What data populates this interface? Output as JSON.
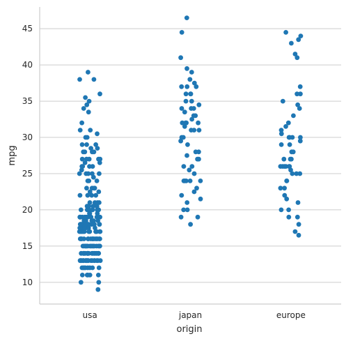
{
  "chart_data": {
    "type": "scatter",
    "subtype": "strip",
    "title": "",
    "xlabel": "origin",
    "ylabel": "mpg",
    "categories": [
      "usa",
      "japan",
      "europe"
    ],
    "ylim": [
      7,
      48
    ],
    "yticks": [
      10,
      15,
      20,
      25,
      30,
      35,
      40,
      45
    ],
    "grid": "horizontal",
    "legend": "none",
    "color": "#1f77b4",
    "series": [
      {
        "category": "usa",
        "values": [
          9,
          10,
          10,
          11,
          11,
          11,
          11,
          11,
          12,
          12,
          12,
          12,
          12,
          12,
          12,
          12,
          13,
          13,
          13,
          13,
          13,
          13,
          13,
          13,
          13,
          13,
          13,
          13,
          13,
          13,
          13,
          13,
          13,
          13,
          13,
          13,
          14,
          14,
          14,
          14,
          14,
          14,
          14,
          14,
          14,
          14,
          14,
          14,
          14,
          14,
          14,
          14,
          14,
          14,
          14,
          15,
          15,
          15,
          15,
          15,
          15,
          15,
          15,
          15,
          15,
          15,
          15,
          15,
          15,
          15,
          15,
          15,
          16,
          16,
          16,
          16,
          16,
          16,
          16,
          16,
          16,
          16,
          16,
          16,
          16,
          16,
          16,
          17,
          17,
          17,
          17,
          17,
          17,
          17,
          17,
          17,
          17,
          17,
          17,
          17,
          17,
          17.5,
          17.5,
          17.5,
          17.5,
          17.5,
          17.5,
          18,
          18,
          18,
          18,
          18,
          18,
          18,
          18,
          18,
          18,
          18,
          18,
          18,
          18,
          18.5,
          18.5,
          18.5,
          18.5,
          18.5,
          19,
          19,
          19,
          19,
          19,
          19,
          19,
          19,
          19,
          19,
          19.5,
          19.5,
          19.5,
          20,
          20,
          20,
          20,
          20,
          20,
          20,
          20,
          20,
          20.5,
          20.5,
          20.5,
          20.5,
          21,
          21,
          21,
          21,
          22,
          22,
          22,
          22,
          22.5,
          22.5,
          23,
          23,
          23,
          23,
          24,
          24,
          24,
          24.5,
          25,
          25,
          25,
          25,
          25,
          25.5,
          26,
          26,
          26,
          26,
          26.5,
          26.5,
          27,
          27,
          27,
          27,
          27,
          28,
          28,
          28,
          28,
          28.5,
          28.5,
          29,
          29,
          29,
          30,
          30,
          30.5,
          31,
          31,
          32,
          33.5,
          34,
          34.5,
          35,
          35.5,
          36,
          38,
          38,
          39
        ]
      },
      {
        "category": "japan",
        "values": [
          18,
          19,
          19,
          20,
          20,
          21,
          21.5,
          22,
          22.5,
          23,
          24,
          24,
          24,
          24,
          24,
          25,
          25.5,
          26,
          26,
          27,
          27,
          27.5,
          28,
          28,
          29,
          29.5,
          30,
          30,
          31,
          31,
          31,
          31.5,
          32,
          32,
          32,
          32,
          32.5,
          33,
          33,
          33.5,
          34,
          34,
          34,
          34.5,
          35,
          35,
          36,
          36,
          36,
          37,
          37,
          37,
          37.5,
          38,
          38,
          39,
          39.5,
          41,
          44.5,
          46.5
        ]
      },
      {
        "category": "europe",
        "values": [
          16.5,
          17,
          18,
          19,
          19,
          20,
          20,
          21,
          21.5,
          22,
          23,
          23,
          24,
          24,
          25,
          25,
          25,
          25.5,
          26,
          26,
          26,
          26,
          26,
          26,
          27,
          27,
          27,
          28,
          28,
          29,
          29,
          29.5,
          30,
          30,
          30,
          30,
          30.5,
          31,
          31.5,
          32,
          33,
          34,
          34.5,
          35,
          36,
          36,
          37,
          41,
          41.5,
          43,
          43.5,
          44,
          44.5
        ]
      }
    ]
  }
}
